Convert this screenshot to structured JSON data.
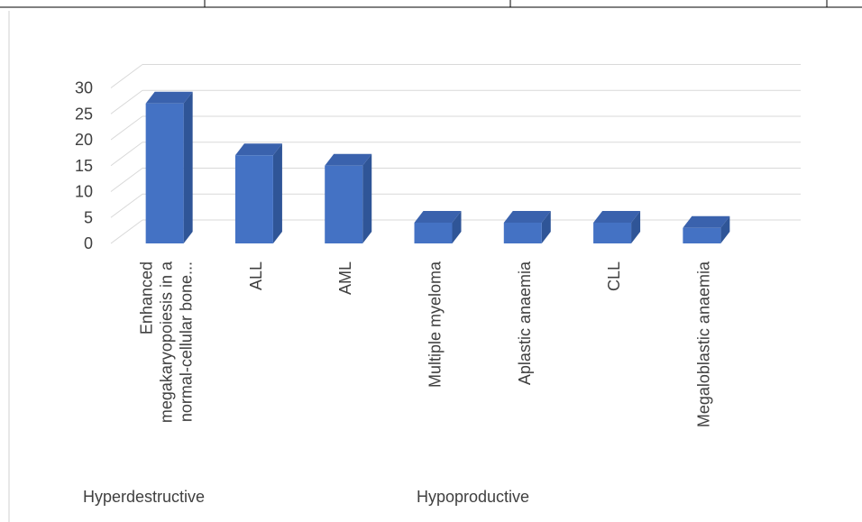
{
  "chart_data": {
    "type": "bar",
    "style": "3d-column",
    "categories": [
      [
        "Enhanced",
        "megakaryopoiesis in a",
        "normal-cellular bone..."
      ],
      [
        "ALL"
      ],
      [
        "AML"
      ],
      [
        "Multiple myeloma"
      ],
      [
        "Aplastic anaemia"
      ],
      [
        "CLL"
      ],
      [
        "Megaloblastic anaemia"
      ]
    ],
    "values": [
      27,
      17,
      15,
      4,
      4,
      4,
      3
    ],
    "y_ticks": [
      "0",
      "5",
      "10",
      "15",
      "20",
      "25",
      "30"
    ],
    "ylim": [
      0,
      30
    ],
    "grid": true,
    "title": "",
    "xlabel": "",
    "ylabel": "",
    "group_labels": [
      "Hyperdestructive",
      "Hypoproductive"
    ],
    "colors": {
      "bar_front": "#4472C4",
      "bar_side": "#2F5597",
      "bar_top": "#3A62AD",
      "grid": "#D9D9D9",
      "axis_text": "#404040"
    }
  }
}
